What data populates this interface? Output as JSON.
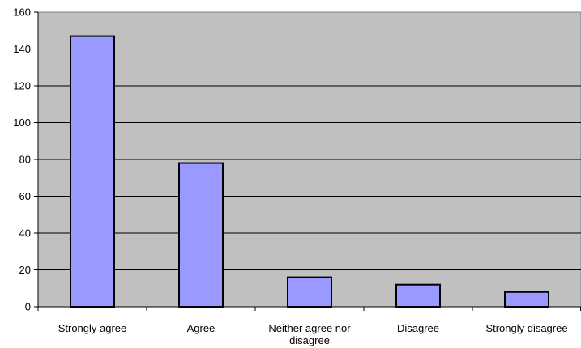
{
  "chart_data": {
    "type": "bar",
    "categories": [
      [
        "Strongly agree"
      ],
      [
        "Agree"
      ],
      [
        "Neither agree nor",
        "disagree"
      ],
      [
        "Disagree"
      ],
      [
        "Strongly disagree"
      ]
    ],
    "values": [
      147,
      78,
      16,
      12,
      8
    ],
    "ylim": [
      0,
      160
    ],
    "yticks": [
      0,
      20,
      40,
      60,
      80,
      100,
      120,
      140,
      160
    ],
    "grid": true,
    "legend": "none",
    "colors": {
      "bar_fill": "#9999ff",
      "bar_stroke": "#000000",
      "plot_background": "#c0c0c0",
      "gridline": "#000000"
    }
  }
}
